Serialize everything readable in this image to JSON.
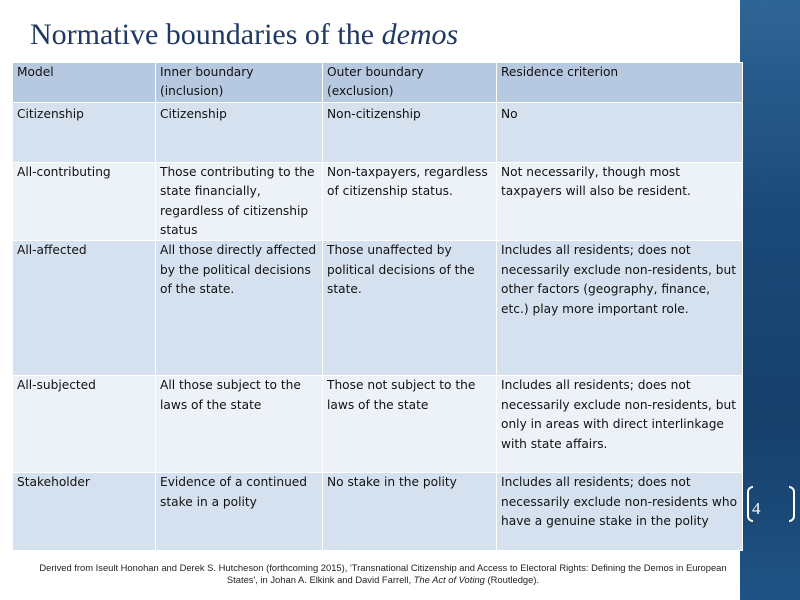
{
  "slide": {
    "title_main": "Normative boundaries of the ",
    "title_em": "demos",
    "page_number": "4"
  },
  "table": {
    "headers": [
      "Model",
      "Inner boundary (inclusion)",
      "Outer boundary (exclusion)",
      "Residence criterion"
    ],
    "rows": [
      [
        "Citizenship",
        "Citizenship",
        "Non-citizenship",
        "No"
      ],
      [
        "All-contributing",
        "Those contributing to the state financially, regardless of citizenship status",
        "Non-taxpayers, regardless of citizenship status.",
        "Not necessarily, though most taxpayers will also be resident."
      ],
      [
        "All-affected",
        "All those directly affected by the political decisions of the state.",
        "Those unaffected by political decisions of the state.",
        "Includes all residents; does not necessarily exclude non-residents, but other factors (geography, finance, etc.) play more important role."
      ],
      [
        "All-subjected",
        "All those subject to the laws of the state",
        "Those not subject to the laws of the state",
        "Includes all residents; does not necessarily exclude non-residents, but only in areas with direct interlinkage with state affairs."
      ],
      [
        "Stakeholder",
        "Evidence of a continued stake in a polity",
        "No stake in the polity",
        "Includes all residents; does not necessarily exclude non-residents who have a genuine stake in the polity"
      ]
    ]
  },
  "citation": {
    "line1": "Derived from Iseult Honohan and Derek S. Hutcheson (forthcoming 2015), 'Transnational Citizenship and Access to Electoral Rights: Defining the Demos in European",
    "line2_pre": "States', in Johan A. Elkink and David Farrell, ",
    "line2_em": "The Act of Voting",
    "line2_post": " (Routledge)."
  },
  "colors": {
    "title": "#1f3864",
    "header_fill": "#b7c9e1",
    "band_dark": "#d6e1ef",
    "band_light": "#edf2f9",
    "side_band": "#1e4f7f"
  }
}
